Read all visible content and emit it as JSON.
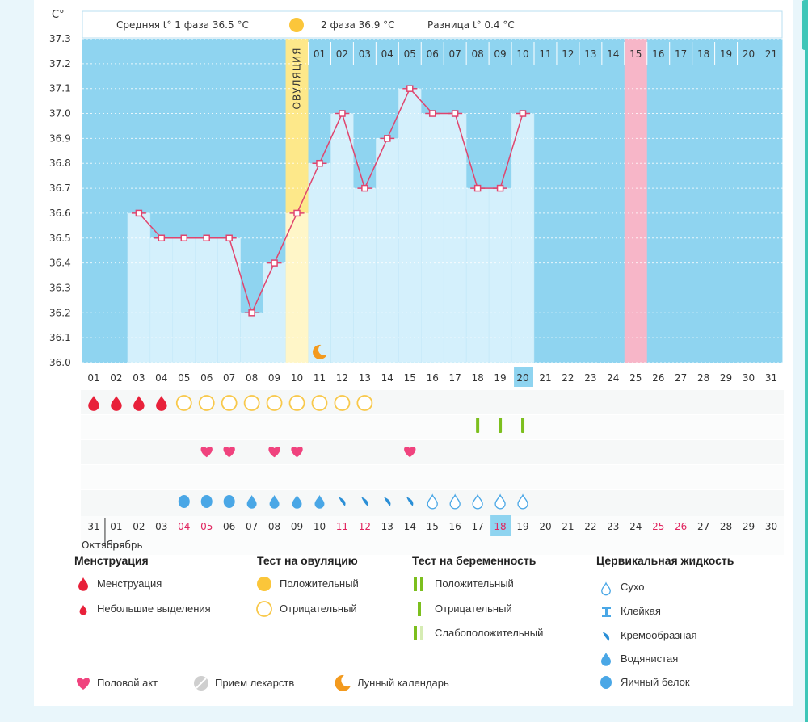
{
  "colors": {
    "background_blue": "#8fd4f0",
    "bar_fill": "#d4f0fc",
    "line": "#e0456e",
    "ovulation_band": "#fde88a",
    "ovulation_lower": "#fff6c8",
    "pink_column": "#f7b6c8",
    "header_bg": "#ffffff",
    "marker_fill": "#ffffff"
  },
  "header": {
    "unit": "C°",
    "phase1": "Средняя t° 1 фаза 36.5 °C",
    "phase2": "2 фаза 36.9 °C",
    "difference": "Разница t° 0.4 °C",
    "ovulation_label": "ОВУЛЯЦИЯ"
  },
  "chart_data": {
    "type": "bar",
    "ylim": [
      36.0,
      37.3
    ],
    "y_ticks": [
      "37.3",
      "37.2",
      "37.1",
      "37.0",
      "36.9",
      "36.8",
      "36.7",
      "36.6",
      "36.5",
      "36.4",
      "36.3",
      "36.2",
      "36.1",
      "36.0"
    ],
    "cycle_days": [
      "01",
      "02",
      "03",
      "04",
      "05",
      "06",
      "07",
      "08",
      "09",
      "10",
      "11",
      "12",
      "13",
      "14",
      "15",
      "16",
      "17",
      "18",
      "19",
      "20",
      "21",
      "22",
      "23",
      "24",
      "25",
      "26",
      "27",
      "28",
      "29",
      "30",
      "31"
    ],
    "temperatures": [
      null,
      null,
      36.6,
      36.5,
      36.5,
      36.5,
      36.5,
      36.2,
      36.4,
      36.6,
      36.8,
      37.0,
      36.7,
      36.9,
      37.1,
      37.0,
      37.0,
      36.7,
      36.7,
      37.0,
      null,
      null,
      null,
      null,
      null,
      null,
      null,
      null,
      null,
      null,
      null
    ],
    "ovulation_day": "10",
    "highlight_day": "25",
    "current_day": "20",
    "phase2_day_numbers": [
      "01",
      "02",
      "03",
      "04",
      "05",
      "06",
      "07",
      "08",
      "09",
      "10",
      "11",
      "12",
      "13",
      "14",
      "15",
      "16",
      "17",
      "18",
      "19",
      "20",
      "21"
    ],
    "moon_day": "11",
    "menstruation_days": [
      "01",
      "02",
      "03",
      "04"
    ],
    "ovulation_test_negative_days": [
      "05",
      "06",
      "07",
      "08",
      "09",
      "10",
      "11",
      "12",
      "13"
    ],
    "pregnancy_test_negative_days": [
      "18",
      "19",
      "20"
    ],
    "intercourse_days": [
      "06",
      "07",
      "09",
      "10",
      "15"
    ],
    "cervical_fluid": [
      {
        "day": "05",
        "type": "egg_white"
      },
      {
        "day": "06",
        "type": "egg_white"
      },
      {
        "day": "07",
        "type": "egg_white"
      },
      {
        "day": "08",
        "type": "watery"
      },
      {
        "day": "09",
        "type": "watery"
      },
      {
        "day": "10",
        "type": "watery"
      },
      {
        "day": "11",
        "type": "watery"
      },
      {
        "day": "12",
        "type": "creamy"
      },
      {
        "day": "13",
        "type": "creamy"
      },
      {
        "day": "14",
        "type": "creamy"
      },
      {
        "day": "15",
        "type": "creamy"
      },
      {
        "day": "16",
        "type": "dry"
      },
      {
        "day": "17",
        "type": "dry"
      },
      {
        "day": "18",
        "type": "dry"
      },
      {
        "day": "19",
        "type": "dry"
      },
      {
        "day": "20",
        "type": "dry"
      }
    ],
    "calendar_dates": [
      {
        "d": "31",
        "red": false
      },
      {
        "d": "01",
        "red": false
      },
      {
        "d": "02",
        "red": false
      },
      {
        "d": "03",
        "red": false
      },
      {
        "d": "04",
        "red": true
      },
      {
        "d": "05",
        "red": true
      },
      {
        "d": "06",
        "red": false
      },
      {
        "d": "07",
        "red": false
      },
      {
        "d": "08",
        "red": false
      },
      {
        "d": "09",
        "red": false
      },
      {
        "d": "10",
        "red": false
      },
      {
        "d": "11",
        "red": true
      },
      {
        "d": "12",
        "red": true
      },
      {
        "d": "13",
        "red": false
      },
      {
        "d": "14",
        "red": false
      },
      {
        "d": "15",
        "red": false
      },
      {
        "d": "16",
        "red": false
      },
      {
        "d": "17",
        "red": false
      },
      {
        "d": "18",
        "red": true
      },
      {
        "d": "19",
        "red": false
      },
      {
        "d": "20",
        "red": false
      },
      {
        "d": "21",
        "red": false
      },
      {
        "d": "22",
        "red": false
      },
      {
        "d": "23",
        "red": false
      },
      {
        "d": "24",
        "red": false
      },
      {
        "d": "25",
        "red": true
      },
      {
        "d": "26",
        "red": true
      },
      {
        "d": "27",
        "red": false
      },
      {
        "d": "28",
        "red": false
      },
      {
        "d": "29",
        "red": false
      },
      {
        "d": "30",
        "red": false
      }
    ],
    "month_left": "Октябрь",
    "month_right": "Ноябрь"
  },
  "legend": {
    "menstruation": {
      "title": "Менструация",
      "items": [
        "Менструация",
        "Небольшие выделения"
      ]
    },
    "ovulation_test": {
      "title": "Тест на овуляцию",
      "items": [
        "Положительный",
        "Отрицательный"
      ]
    },
    "pregnancy_test": {
      "title": "Тест на беременность",
      "items": [
        "Положительный",
        "Отрицательный",
        "Слабоположительный"
      ]
    },
    "cervical": {
      "title": "Цервикальная жидкость",
      "items": [
        "Сухо",
        "Клейкая",
        "Кремообразная",
        "Водянистая",
        "Яичный белок"
      ]
    },
    "bottom": [
      "Половой акт",
      "Прием лекарств",
      "Лунный календарь"
    ]
  }
}
